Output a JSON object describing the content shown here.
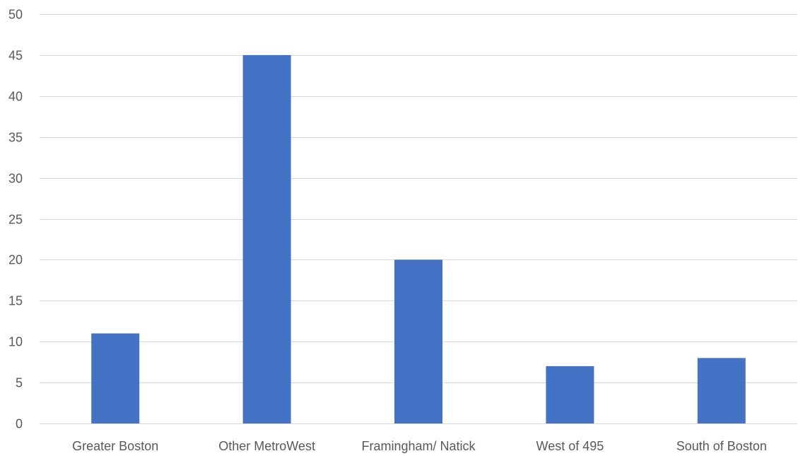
{
  "chart_data": {
    "type": "bar",
    "title": "",
    "xlabel": "",
    "ylabel": "",
    "categories": [
      "Greater Boston",
      "Other MetroWest",
      "Framingham/ Natick",
      "West of 495",
      "South of Boston"
    ],
    "values": [
      11,
      45,
      20,
      7,
      8
    ],
    "ylim": [
      0,
      50
    ],
    "yticks": [
      0,
      5,
      10,
      15,
      20,
      25,
      30,
      35,
      40,
      45,
      50
    ],
    "grid": true,
    "legend": "none",
    "bar_color": "#4472c4",
    "grid_color": "#d9d9d9",
    "label_color": "#595959"
  }
}
